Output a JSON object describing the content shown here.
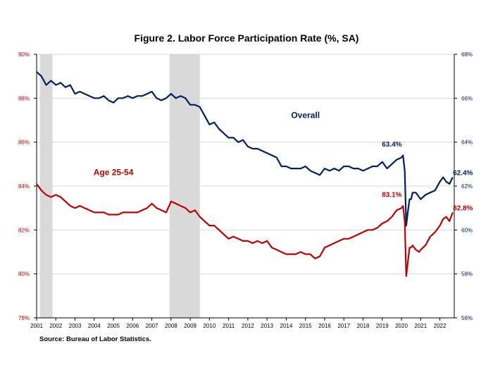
{
  "header": {
    "title": "Figure 2. Labor Force Participation  Rate (%, SA)"
  },
  "footer": {
    "source": "Source: Bureau of Labor Statistics."
  },
  "chart_data": {
    "type": "line",
    "title": "Figure 2. Labor Force Participation  Rate (%, SA)",
    "xlabel": "",
    "ylabel_left": "",
    "ylabel_right": "",
    "grid": true,
    "x_ticks": [
      "2001",
      "2002",
      "2003",
      "2004",
      "2005",
      "2006",
      "2007",
      "2008",
      "2009",
      "2010",
      "2011",
      "2012",
      "2013",
      "2014",
      "2015",
      "2016",
      "2017",
      "2018",
      "2019",
      "2020",
      "2021",
      "2022"
    ],
    "xlim": [
      2001,
      2022.75
    ],
    "y_left": {
      "lim": [
        78,
        90
      ],
      "ticks": [
        "78%",
        "80%",
        "82%",
        "84%",
        "86%",
        "88%",
        "90%"
      ],
      "color": "#C00000"
    },
    "y_right": {
      "lim": [
        56,
        68
      ],
      "ticks": [
        "56%",
        "58%",
        "60%",
        "62%",
        "64%",
        "66%",
        "68%"
      ],
      "color": "#002060"
    },
    "recessions": [
      {
        "start": 2001.17,
        "end": 2001.83
      },
      {
        "start": 2007.92,
        "end": 2009.5
      }
    ],
    "series": [
      {
        "axis": "right",
        "color": "#002060",
        "points": [
          [
            2001.0,
            67.2
          ],
          [
            2001.25,
            67.0
          ],
          [
            2001.5,
            66.6
          ],
          [
            2001.75,
            66.8
          ],
          [
            2002.0,
            66.6
          ],
          [
            2002.25,
            66.7
          ],
          [
            2002.5,
            66.5
          ],
          [
            2002.75,
            66.6
          ],
          [
            2003.0,
            66.2
          ],
          [
            2003.25,
            66.3
          ],
          [
            2003.5,
            66.2
          ],
          [
            2003.75,
            66.1
          ],
          [
            2004.0,
            66.0
          ],
          [
            2004.25,
            66.0
          ],
          [
            2004.5,
            66.1
          ],
          [
            2004.75,
            65.9
          ],
          [
            2005.0,
            65.8
          ],
          [
            2005.25,
            66.0
          ],
          [
            2005.5,
            66.0
          ],
          [
            2005.75,
            66.1
          ],
          [
            2006.0,
            66.0
          ],
          [
            2006.25,
            66.1
          ],
          [
            2006.5,
            66.1
          ],
          [
            2006.75,
            66.2
          ],
          [
            2007.0,
            66.3
          ],
          [
            2007.25,
            66.0
          ],
          [
            2007.5,
            65.9
          ],
          [
            2007.75,
            66.0
          ],
          [
            2008.0,
            66.2
          ],
          [
            2008.25,
            66.0
          ],
          [
            2008.5,
            66.1
          ],
          [
            2008.75,
            66.0
          ],
          [
            2009.0,
            65.7
          ],
          [
            2009.25,
            65.7
          ],
          [
            2009.5,
            65.6
          ],
          [
            2009.75,
            65.2
          ],
          [
            2010.0,
            64.8
          ],
          [
            2010.25,
            64.9
          ],
          [
            2010.5,
            64.6
          ],
          [
            2010.75,
            64.4
          ],
          [
            2011.0,
            64.2
          ],
          [
            2011.25,
            64.2
          ],
          [
            2011.5,
            64.0
          ],
          [
            2011.75,
            64.1
          ],
          [
            2012.0,
            63.8
          ],
          [
            2012.25,
            63.7
          ],
          [
            2012.5,
            63.7
          ],
          [
            2012.75,
            63.6
          ],
          [
            2013.0,
            63.5
          ],
          [
            2013.25,
            63.4
          ],
          [
            2013.5,
            63.3
          ],
          [
            2013.75,
            62.9
          ],
          [
            2014.0,
            62.9
          ],
          [
            2014.25,
            62.8
          ],
          [
            2014.5,
            62.8
          ],
          [
            2014.75,
            62.8
          ],
          [
            2015.0,
            62.9
          ],
          [
            2015.25,
            62.7
          ],
          [
            2015.5,
            62.6
          ],
          [
            2015.75,
            62.5
          ],
          [
            2016.0,
            62.8
          ],
          [
            2016.25,
            62.7
          ],
          [
            2016.5,
            62.8
          ],
          [
            2016.75,
            62.7
          ],
          [
            2017.0,
            62.9
          ],
          [
            2017.25,
            62.9
          ],
          [
            2017.5,
            62.8
          ],
          [
            2017.75,
            62.8
          ],
          [
            2018.0,
            62.7
          ],
          [
            2018.25,
            62.8
          ],
          [
            2018.5,
            62.9
          ],
          [
            2018.75,
            62.9
          ],
          [
            2019.0,
            63.1
          ],
          [
            2019.25,
            62.8
          ],
          [
            2019.5,
            63.0
          ],
          [
            2019.75,
            63.2
          ],
          [
            2020.0,
            63.3
          ],
          [
            2020.08,
            63.4
          ],
          [
            2020.17,
            62.7
          ],
          [
            2020.25,
            60.2
          ],
          [
            2020.33,
            60.8
          ],
          [
            2020.42,
            61.4
          ],
          [
            2020.5,
            61.4
          ],
          [
            2020.58,
            61.7
          ],
          [
            2020.75,
            61.7
          ],
          [
            2020.92,
            61.5
          ],
          [
            2021.0,
            61.4
          ],
          [
            2021.25,
            61.6
          ],
          [
            2021.5,
            61.7
          ],
          [
            2021.75,
            61.8
          ],
          [
            2022.0,
            62.2
          ],
          [
            2022.17,
            62.4
          ],
          [
            2022.33,
            62.2
          ],
          [
            2022.5,
            62.1
          ],
          [
            2022.67,
            62.4
          ]
        ]
      },
      {
        "axis": "left",
        "color": "#C00000",
        "points": [
          [
            2001.0,
            84.1
          ],
          [
            2001.25,
            83.8
          ],
          [
            2001.5,
            83.6
          ],
          [
            2001.75,
            83.5
          ],
          [
            2002.0,
            83.6
          ],
          [
            2002.25,
            83.5
          ],
          [
            2002.5,
            83.3
          ],
          [
            2002.75,
            83.1
          ],
          [
            2003.0,
            83.0
          ],
          [
            2003.25,
            83.1
          ],
          [
            2003.5,
            83.0
          ],
          [
            2003.75,
            82.9
          ],
          [
            2004.0,
            82.8
          ],
          [
            2004.25,
            82.8
          ],
          [
            2004.5,
            82.8
          ],
          [
            2004.75,
            82.7
          ],
          [
            2005.0,
            82.7
          ],
          [
            2005.25,
            82.7
          ],
          [
            2005.5,
            82.8
          ],
          [
            2005.75,
            82.8
          ],
          [
            2006.0,
            82.8
          ],
          [
            2006.25,
            82.8
          ],
          [
            2006.5,
            82.9
          ],
          [
            2006.75,
            83.0
          ],
          [
            2007.0,
            83.2
          ],
          [
            2007.25,
            83.0
          ],
          [
            2007.5,
            82.9
          ],
          [
            2007.75,
            82.8
          ],
          [
            2008.0,
            83.3
          ],
          [
            2008.25,
            83.2
          ],
          [
            2008.5,
            83.1
          ],
          [
            2008.75,
            83.0
          ],
          [
            2009.0,
            82.8
          ],
          [
            2009.25,
            82.9
          ],
          [
            2009.5,
            82.6
          ],
          [
            2009.75,
            82.4
          ],
          [
            2010.0,
            82.2
          ],
          [
            2010.25,
            82.2
          ],
          [
            2010.5,
            82.0
          ],
          [
            2010.75,
            81.8
          ],
          [
            2011.0,
            81.6
          ],
          [
            2011.25,
            81.7
          ],
          [
            2011.5,
            81.6
          ],
          [
            2011.75,
            81.5
          ],
          [
            2012.0,
            81.5
          ],
          [
            2012.25,
            81.4
          ],
          [
            2012.5,
            81.5
          ],
          [
            2012.75,
            81.4
          ],
          [
            2013.0,
            81.5
          ],
          [
            2013.25,
            81.2
          ],
          [
            2013.5,
            81.1
          ],
          [
            2013.75,
            81.0
          ],
          [
            2014.0,
            80.9
          ],
          [
            2014.25,
            80.9
          ],
          [
            2014.5,
            80.9
          ],
          [
            2014.75,
            81.0
          ],
          [
            2015.0,
            80.9
          ],
          [
            2015.25,
            80.9
          ],
          [
            2015.5,
            80.7
          ],
          [
            2015.75,
            80.8
          ],
          [
            2016.0,
            81.2
          ],
          [
            2016.25,
            81.3
          ],
          [
            2016.5,
            81.4
          ],
          [
            2016.75,
            81.5
          ],
          [
            2017.0,
            81.6
          ],
          [
            2017.25,
            81.6
          ],
          [
            2017.5,
            81.7
          ],
          [
            2017.75,
            81.8
          ],
          [
            2018.0,
            81.9
          ],
          [
            2018.25,
            82.0
          ],
          [
            2018.5,
            82.0
          ],
          [
            2018.75,
            82.1
          ],
          [
            2019.0,
            82.3
          ],
          [
            2019.25,
            82.4
          ],
          [
            2019.5,
            82.6
          ],
          [
            2019.75,
            82.9
          ],
          [
            2020.0,
            83.0
          ],
          [
            2020.08,
            83.1
          ],
          [
            2020.17,
            82.4
          ],
          [
            2020.25,
            79.9
          ],
          [
            2020.33,
            80.5
          ],
          [
            2020.42,
            81.2
          ],
          [
            2020.5,
            81.2
          ],
          [
            2020.58,
            81.3
          ],
          [
            2020.75,
            81.1
          ],
          [
            2020.92,
            81.0
          ],
          [
            2021.0,
            81.1
          ],
          [
            2021.25,
            81.3
          ],
          [
            2021.5,
            81.7
          ],
          [
            2021.75,
            81.9
          ],
          [
            2022.0,
            82.2
          ],
          [
            2022.17,
            82.5
          ],
          [
            2022.33,
            82.6
          ],
          [
            2022.5,
            82.4
          ],
          [
            2022.67,
            82.8
          ]
        ]
      }
    ],
    "annotations": [
      {
        "text": "Overall",
        "color": "#002060",
        "x": 2015.0,
        "y": 65.1,
        "axis": "right",
        "bold": true,
        "size": 12
      },
      {
        "text": "Age 25-54",
        "color": "#C00000",
        "x": 2005.0,
        "y": 84.5,
        "axis": "left",
        "bold": true,
        "size": 12
      },
      {
        "text": "63.4%",
        "color": "#002060",
        "x": 2019.5,
        "y": 63.8,
        "axis": "right",
        "bold": true,
        "size": 10
      },
      {
        "text": "62.4%",
        "color": "#002060",
        "x": 2023.2,
        "y": 62.5,
        "axis": "right",
        "bold": true,
        "size": 10
      },
      {
        "text": "83.1%",
        "color": "#C00000",
        "x": 2019.5,
        "y": 83.5,
        "axis": "left",
        "bold": true,
        "size": 10
      },
      {
        "text": "82.8%",
        "color": "#C00000",
        "x": 2023.2,
        "y": 82.9,
        "axis": "left",
        "bold": true,
        "size": 10
      }
    ]
  }
}
